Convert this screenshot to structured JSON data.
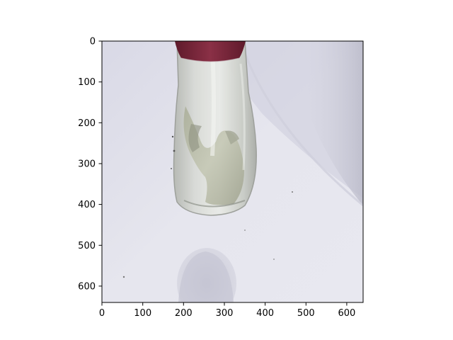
{
  "figure": {
    "type": "image-display",
    "image_subject": "glass bottle with red cap standing on a white surface, casting a shadow",
    "x_ticks": [
      "0",
      "100",
      "200",
      "300",
      "400",
      "500",
      "600"
    ],
    "y_ticks": [
      "0",
      "100",
      "200",
      "300",
      "400",
      "500",
      "600"
    ],
    "x_tick_values": [
      0,
      100,
      200,
      300,
      400,
      500,
      600
    ],
    "y_tick_values": [
      0,
      100,
      200,
      300,
      400,
      500,
      600
    ],
    "xlim": [
      0,
      640
    ],
    "ylim": [
      640,
      0
    ],
    "colors": {
      "background_surface": "#e2e2ec",
      "shadow": "#c4c4d2",
      "bottle_glass": "#c9cbc4",
      "liquid": "#b5b8a4",
      "cap": "#7a2438",
      "axes": "#000000"
    }
  }
}
